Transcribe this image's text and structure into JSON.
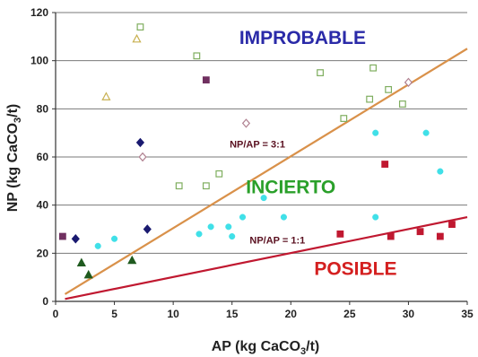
{
  "chart_data": {
    "type": "scatter",
    "xlabel": "AP (kg CaCO",
    "xlabel_sub": "3",
    "xlabel_end": "/t)",
    "ylabel": "NP (kg CaCO",
    "ylabel_sub": "3",
    "ylabel_end": "/t)",
    "xlim": [
      0,
      35
    ],
    "ylim": [
      0,
      120
    ],
    "xticks": [
      0,
      5,
      10,
      15,
      20,
      25,
      30,
      35
    ],
    "yticks": [
      0,
      20,
      40,
      60,
      80,
      100,
      120
    ],
    "grid": "horizontal",
    "regions": [
      {
        "label": "IMPROBABLE",
        "color": "#2a2aa8",
        "x": 21.0,
        "y": 107
      },
      {
        "label": "INCIERTO",
        "color": "#2aa02a",
        "x": 20.0,
        "y": 45
      },
      {
        "label": "POSIBLE",
        "color": "#d42020",
        "x": 25.5,
        "y": 11
      }
    ],
    "lines": [
      {
        "label": "NP/AP = 3:1",
        "color": "#d9914a",
        "x": [
          0.8,
          35
        ],
        "y": [
          3,
          105
        ],
        "label_x": 14.8,
        "label_y": 64
      },
      {
        "label": "NP/AP = 1:1",
        "color": "#c01830",
        "x": [
          0.8,
          35
        ],
        "y": [
          1,
          35
        ],
        "label_x": 16.5,
        "label_y": 24
      }
    ],
    "series": [
      {
        "marker": "square-open",
        "color": "#7fae5f",
        "points": [
          [
            7.2,
            114
          ],
          [
            12.0,
            102
          ],
          [
            22.5,
            95
          ],
          [
            27.0,
            97
          ],
          [
            28.3,
            88
          ],
          [
            26.7,
            84
          ],
          [
            29.5,
            82
          ],
          [
            24.5,
            76
          ],
          [
            13.9,
            53
          ],
          [
            10.5,
            48
          ],
          [
            12.8,
            48
          ]
        ]
      },
      {
        "marker": "triangle-open",
        "color": "#c8b050",
        "points": [
          [
            6.9,
            109
          ],
          [
            4.3,
            85
          ]
        ]
      },
      {
        "marker": "diamond-open",
        "color": "#b08090",
        "points": [
          [
            16.2,
            74
          ],
          [
            7.4,
            60
          ],
          [
            30.0,
            91
          ]
        ]
      },
      {
        "marker": "diamond",
        "color": "#1a1a70",
        "points": [
          [
            7.2,
            66
          ],
          [
            7.8,
            30
          ],
          [
            1.7,
            26
          ]
        ]
      },
      {
        "marker": "square",
        "color": "#703060",
        "points": [
          [
            12.8,
            92
          ],
          [
            0.6,
            27
          ]
        ]
      },
      {
        "marker": "circle",
        "color": "#40e0e8",
        "points": [
          [
            27.2,
            70
          ],
          [
            31.5,
            70
          ],
          [
            32.7,
            54
          ],
          [
            17.7,
            43
          ],
          [
            19.4,
            35
          ],
          [
            15.9,
            35
          ],
          [
            27.2,
            35
          ],
          [
            13.2,
            31
          ],
          [
            14.7,
            31
          ],
          [
            12.2,
            28
          ],
          [
            15.0,
            27
          ],
          [
            5.0,
            26
          ],
          [
            3.6,
            23
          ]
        ]
      },
      {
        "marker": "triangle",
        "color": "#1f5a1f",
        "points": [
          [
            2.2,
            16
          ],
          [
            6.5,
            17
          ],
          [
            2.8,
            11
          ]
        ]
      },
      {
        "marker": "square",
        "color": "#c01830",
        "points": [
          [
            28.0,
            57
          ],
          [
            24.2,
            28
          ],
          [
            28.5,
            27
          ],
          [
            31.0,
            29
          ],
          [
            32.7,
            27
          ],
          [
            33.7,
            32
          ]
        ]
      }
    ]
  }
}
